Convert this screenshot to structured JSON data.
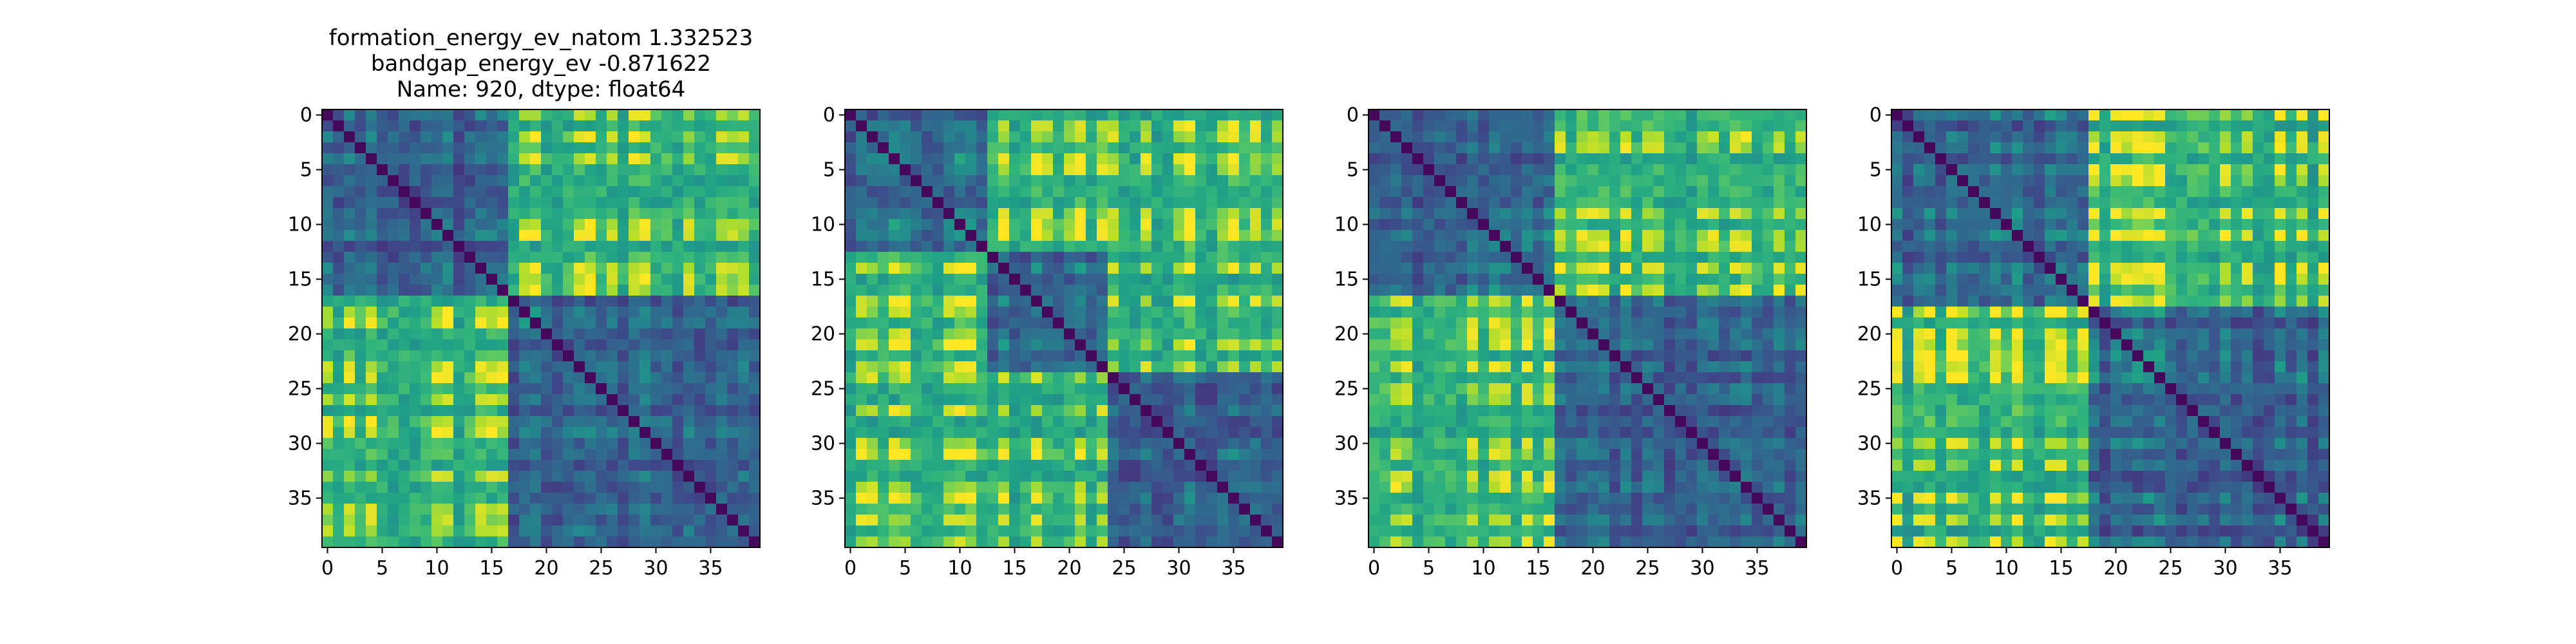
{
  "chart_data": [
    {
      "type": "heatmap",
      "title": [
        "formation_energy_ev_natom    1.332523",
        "bandgap_energy_ev          -0.871622",
        "Name: 920, dtype: float64"
      ],
      "size": 40,
      "colormap": "viridis",
      "value_range": [
        0,
        1
      ],
      "blocks": [
        17
      ],
      "xticks": [
        0,
        5,
        10,
        15,
        20,
        25,
        30,
        35
      ],
      "yticks": [
        0,
        5,
        10,
        15,
        20,
        25,
        30,
        35
      ],
      "grid": false
    },
    {
      "type": "heatmap",
      "title": [],
      "size": 40,
      "colormap": "viridis",
      "value_range": [
        0,
        1
      ],
      "blocks": [
        13,
        24
      ],
      "xticks": [
        0,
        5,
        10,
        15,
        20,
        25,
        30,
        35
      ],
      "yticks": [
        0,
        5,
        10,
        15,
        20,
        25,
        30,
        35
      ],
      "grid": false
    },
    {
      "type": "heatmap",
      "title": [],
      "size": 40,
      "colormap": "viridis",
      "value_range": [
        0,
        1
      ],
      "blocks": [
        17
      ],
      "xticks": [
        0,
        5,
        10,
        15,
        20,
        25,
        30,
        35
      ],
      "yticks": [
        0,
        5,
        10,
        15,
        20,
        25,
        30,
        35
      ],
      "grid": false
    },
    {
      "type": "heatmap",
      "title": [],
      "size": 40,
      "colormap": "viridis",
      "value_range": [
        0,
        1
      ],
      "blocks": [
        18
      ],
      "xticks": [
        0,
        5,
        10,
        15,
        20,
        25,
        30,
        35
      ],
      "yticks": [
        0,
        5,
        10,
        15,
        20,
        25,
        30,
        35
      ],
      "grid": false
    }
  ]
}
